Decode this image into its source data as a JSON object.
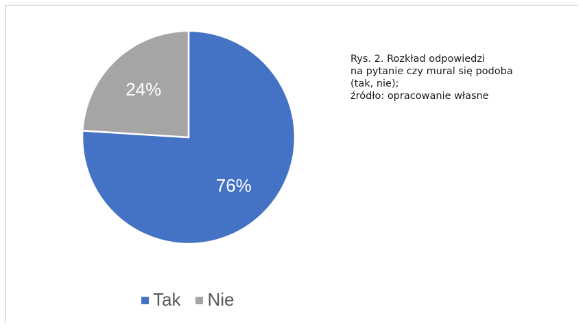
{
  "chart_data": {
    "type": "pie",
    "categories": [
      "Tak",
      "Nie"
    ],
    "values": [
      76,
      24
    ],
    "data_labels": [
      "76%",
      "24%"
    ],
    "colors": [
      "#4472c4",
      "#a5a5a5"
    ],
    "legend_position": "bottom",
    "start_angle_deg": 0,
    "direction": "clockwise"
  },
  "caption": {
    "lines": [
      "Rys. 2. Rozkład odpowiedzi",
      "na pytanie czy mural się podoba",
      "(tak, nie);",
      "źródło: opracowanie własne"
    ]
  },
  "legend": {
    "items": [
      {
        "label": "Tak",
        "color": "#4472c4"
      },
      {
        "label": "Nie",
        "color": "#a5a5a5"
      }
    ]
  }
}
